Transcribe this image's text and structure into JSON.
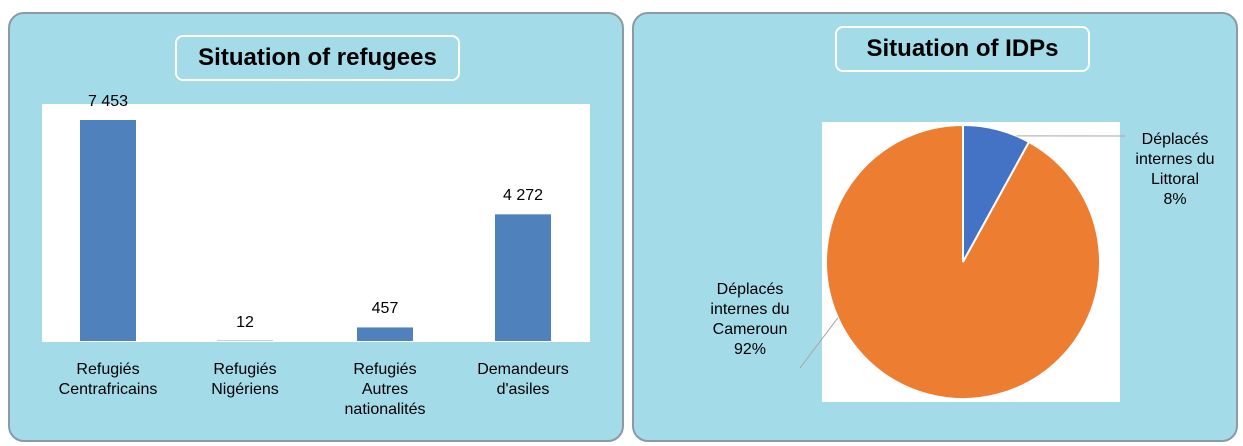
{
  "chart_data": [
    {
      "type": "bar",
      "title": "Situation of refugees",
      "categories": [
        "Refugiés Centrafricains",
        "Refugiés Nigériens",
        "Refugiés Autres nationalités",
        "Demandeurs d'asiles"
      ],
      "values": [
        7453,
        12,
        457,
        4272
      ],
      "value_labels": [
        "7 453",
        "12",
        "457",
        "4 272"
      ],
      "color": "#4f81bd"
    },
    {
      "type": "pie",
      "title": "Situation of IDPs",
      "categories": [
        "Déplacés internes du Littoral",
        "Déplacés internes du Cameroun"
      ],
      "values": [
        8,
        92
      ],
      "value_labels": [
        "8%",
        "92%"
      ],
      "colors": [
        "#4472c4",
        "#ed7d31"
      ]
    }
  ]
}
